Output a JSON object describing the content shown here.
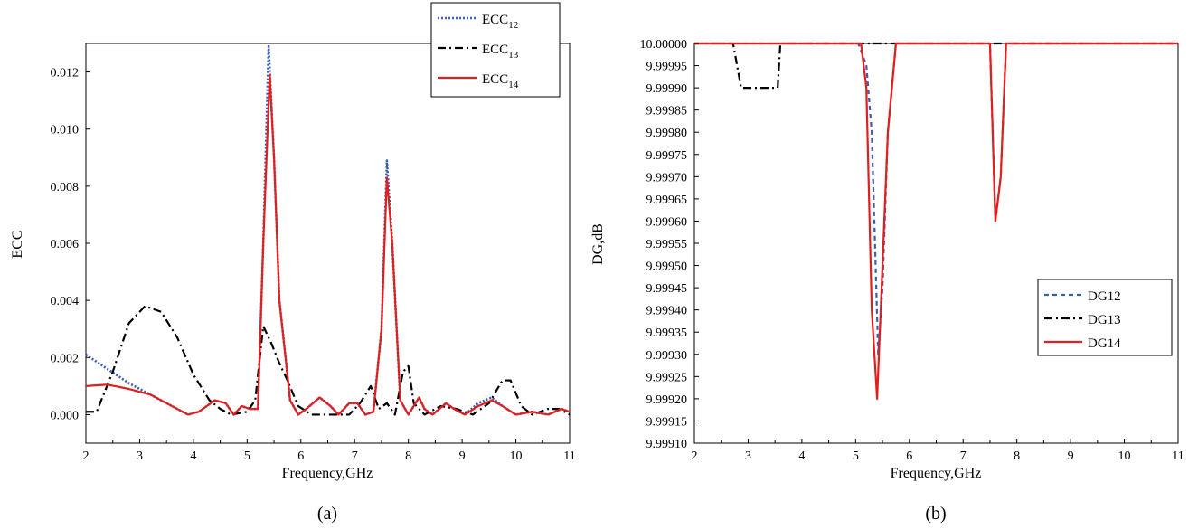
{
  "colors": {
    "ecc12": "#3a5fb0",
    "ecc13": "#000000",
    "ecc14": "#e02020"
  },
  "chart_data": [
    {
      "type": "line",
      "caption": "(a)",
      "xlabel": "Frequency,GHz",
      "ylabel": "ECC",
      "xlim": [
        2,
        11
      ],
      "ylim": [
        -0.001,
        0.013
      ],
      "xticks": [
        "2",
        "3",
        "4",
        "5",
        "6",
        "7",
        "8",
        "9",
        "10",
        "11"
      ],
      "yticks": [
        "0.000",
        "0.002",
        "0.004",
        "0.006",
        "0.008",
        "0.010",
        "0.012"
      ],
      "legend_position": "top-right",
      "series": [
        {
          "name": "ECC",
          "sub": "12",
          "color": "#3a5fb0",
          "dash": "2,2",
          "points": [
            [
              2,
              0.0021
            ],
            [
              2.4,
              0.0016
            ],
            [
              2.8,
              0.0011
            ],
            [
              3.2,
              0.0007
            ],
            [
              3.6,
              0.0003
            ],
            [
              3.9,
              0.0
            ],
            [
              4.1,
              0.0001
            ],
            [
              4.4,
              0.0005
            ],
            [
              4.6,
              0.0004
            ],
            [
              4.75,
              0.0
            ],
            [
              4.9,
              0.0003
            ],
            [
              5.05,
              0.0002
            ],
            [
              5.2,
              0.0002
            ],
            [
              5.3,
              0.006
            ],
            [
              5.4,
              0.0129
            ],
            [
              5.5,
              0.009
            ],
            [
              5.6,
              0.004
            ],
            [
              5.8,
              0.0005
            ],
            [
              5.95,
              0.0
            ],
            [
              6.1,
              0.0002
            ],
            [
              6.35,
              0.0006
            ],
            [
              6.55,
              0.0003
            ],
            [
              6.7,
              0.0
            ],
            [
              6.9,
              0.0004
            ],
            [
              7.05,
              0.0004
            ],
            [
              7.2,
              0.0
            ],
            [
              7.35,
              0.0001
            ],
            [
              7.5,
              0.003
            ],
            [
              7.6,
              0.0089
            ],
            [
              7.7,
              0.006
            ],
            [
              7.85,
              0.0005
            ],
            [
              8.0,
              0.0
            ],
            [
              8.1,
              0.0003
            ],
            [
              8.2,
              0.0006
            ],
            [
              8.3,
              0.0002
            ],
            [
              8.45,
              0.0
            ],
            [
              8.7,
              0.0004
            ],
            [
              8.85,
              0.0002
            ],
            [
              9.05,
              0.0
            ],
            [
              9.3,
              0.0004
            ],
            [
              9.55,
              0.0006
            ],
            [
              9.75,
              0.0003
            ],
            [
              10.0,
              0.0
            ],
            [
              10.3,
              0.0001
            ],
            [
              10.6,
              0.0
            ],
            [
              10.85,
              0.0002
            ],
            [
              11,
              0.0001
            ]
          ]
        },
        {
          "name": "ECC",
          "sub": "13",
          "color": "#000000",
          "dash": "9,4,2,4",
          "points": [
            [
              2,
              0.0001
            ],
            [
              2.2,
              0.0001
            ],
            [
              2.5,
              0.0015
            ],
            [
              2.8,
              0.0032
            ],
            [
              3.1,
              0.0038
            ],
            [
              3.4,
              0.0036
            ],
            [
              3.7,
              0.0027
            ],
            [
              4.0,
              0.0014
            ],
            [
              4.3,
              0.0005
            ],
            [
              4.5,
              0.0002
            ],
            [
              4.7,
              0.0
            ],
            [
              5.0,
              0.0001
            ],
            [
              5.15,
              0.0005
            ],
            [
              5.3,
              0.0031
            ],
            [
              5.45,
              0.0025
            ],
            [
              5.6,
              0.0018
            ],
            [
              5.75,
              0.0012
            ],
            [
              5.95,
              0.0003
            ],
            [
              6.2,
              0.0
            ],
            [
              6.6,
              0.0
            ],
            [
              6.9,
              0.0
            ],
            [
              7.1,
              0.0004
            ],
            [
              7.3,
              0.001
            ],
            [
              7.45,
              0.0002
            ],
            [
              7.6,
              0.0004
            ],
            [
              7.75,
              0.0
            ],
            [
              7.9,
              0.0015
            ],
            [
              8.0,
              0.0017
            ],
            [
              8.1,
              0.0004
            ],
            [
              8.3,
              0.0
            ],
            [
              8.6,
              0.0003
            ],
            [
              8.9,
              0.0002
            ],
            [
              9.2,
              0.0
            ],
            [
              9.5,
              0.0004
            ],
            [
              9.75,
              0.0012
            ],
            [
              9.9,
              0.0012
            ],
            [
              10.1,
              0.0003
            ],
            [
              10.3,
              0.0
            ],
            [
              10.6,
              0.0002
            ],
            [
              10.8,
              0.0002
            ],
            [
              11,
              0.0
            ]
          ]
        },
        {
          "name": "ECC",
          "sub": "14",
          "color": "#e02020",
          "dash": "",
          "points": [
            [
              2,
              0.001
            ],
            [
              2.4,
              0.00105
            ],
            [
              2.8,
              0.0009
            ],
            [
              3.2,
              0.0007
            ],
            [
              3.6,
              0.0003
            ],
            [
              3.9,
              0.0
            ],
            [
              4.1,
              0.0001
            ],
            [
              4.4,
              0.0005
            ],
            [
              4.6,
              0.0004
            ],
            [
              4.75,
              0.0
            ],
            [
              4.9,
              0.0003
            ],
            [
              5.05,
              0.0002
            ],
            [
              5.2,
              0.0002
            ],
            [
              5.3,
              0.006
            ],
            [
              5.42,
              0.0119
            ],
            [
              5.5,
              0.009
            ],
            [
              5.6,
              0.004
            ],
            [
              5.8,
              0.0005
            ],
            [
              5.95,
              0.0
            ],
            [
              6.1,
              0.0002
            ],
            [
              6.35,
              0.0006
            ],
            [
              6.55,
              0.0003
            ],
            [
              6.7,
              0.0
            ],
            [
              6.9,
              0.0004
            ],
            [
              7.05,
              0.0004
            ],
            [
              7.2,
              0.0
            ],
            [
              7.35,
              0.0001
            ],
            [
              7.5,
              0.003
            ],
            [
              7.6,
              0.0083
            ],
            [
              7.7,
              0.006
            ],
            [
              7.85,
              0.0005
            ],
            [
              8.0,
              0.0
            ],
            [
              8.1,
              0.0003
            ],
            [
              8.2,
              0.0006
            ],
            [
              8.3,
              0.0002
            ],
            [
              8.45,
              0.0
            ],
            [
              8.7,
              0.0004
            ],
            [
              8.85,
              0.0002
            ],
            [
              9.05,
              0.0
            ],
            [
              9.3,
              0.0003
            ],
            [
              9.55,
              0.0005
            ],
            [
              9.75,
              0.0003
            ],
            [
              10.0,
              0.0
            ],
            [
              10.3,
              0.0001
            ],
            [
              10.6,
              0.0
            ],
            [
              10.85,
              0.0002
            ],
            [
              11,
              0.0001
            ]
          ]
        }
      ]
    },
    {
      "type": "line",
      "caption": "(b)",
      "xlabel": "Frequency,GHz",
      "ylabel": "DG,dB",
      "xlim": [
        2,
        11
      ],
      "ylim": [
        9.9991,
        10.0
      ],
      "xticks": [
        "2",
        "3",
        "4",
        "5",
        "6",
        "7",
        "8",
        "9",
        "10",
        "11"
      ],
      "yticks": [
        "9.99910",
        "9.99915",
        "9.99920",
        "9.99925",
        "9.99930",
        "9.99935",
        "9.99940",
        "9.99945",
        "9.99950",
        "9.99955",
        "9.99960",
        "9.99965",
        "9.99970",
        "9.99975",
        "9.99980",
        "9.99985",
        "9.99990",
        "9.99995",
        "10.00000"
      ],
      "legend_position": "center-right",
      "series": [
        {
          "name": "DG12",
          "color": "#3a5fb0",
          "dash": "5,4",
          "points": [
            [
              2,
              10.0
            ],
            [
              5.05,
              10.0
            ],
            [
              5.2,
              9.99995
            ],
            [
              5.3,
              9.9998
            ],
            [
              5.42,
              9.9993
            ],
            [
              5.5,
              9.99945
            ],
            [
              5.6,
              9.9998
            ],
            [
              5.75,
              10.0
            ],
            [
              7.5,
              10.0
            ],
            [
              7.6,
              9.9996
            ],
            [
              7.7,
              9.9997
            ],
            [
              7.8,
              10.0
            ],
            [
              11,
              10.0
            ]
          ]
        },
        {
          "name": "DG13",
          "color": "#000000",
          "dash": "9,4,2,4",
          "points": [
            [
              2,
              10.0
            ],
            [
              2.72,
              10.0
            ],
            [
              2.87,
              9.9999
            ],
            [
              3.55,
              9.9999
            ],
            [
              3.6,
              10.0
            ],
            [
              11,
              10.0
            ]
          ]
        },
        {
          "name": "DG14",
          "color": "#e02020",
          "dash": "",
          "points": [
            [
              2,
              10.0
            ],
            [
              5.1,
              10.0
            ],
            [
              5.2,
              9.9999
            ],
            [
              5.3,
              9.9994
            ],
            [
              5.4,
              9.9992
            ],
            [
              5.5,
              9.9995
            ],
            [
              5.6,
              9.9998
            ],
            [
              5.75,
              10.0
            ],
            [
              7.5,
              10.0
            ],
            [
              7.6,
              9.9996
            ],
            [
              7.7,
              9.9997
            ],
            [
              7.8,
              10.0
            ],
            [
              11,
              10.0
            ]
          ]
        }
      ]
    }
  ]
}
